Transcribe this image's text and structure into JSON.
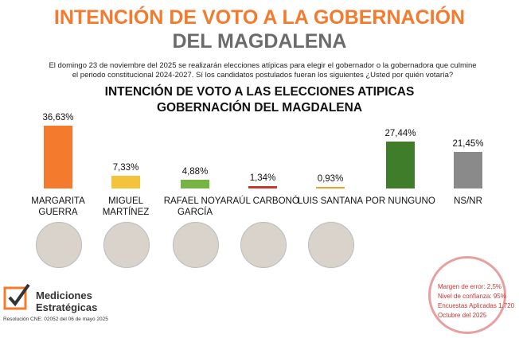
{
  "header": {
    "title": "INTENCIÓN DE VOTO A LA GOBERNACIÓN",
    "subtitle": "DEL MAGDALENA",
    "intro": "El domingo 23 de noviembre del 2025 se realizarán elecciones atípicas para elegir el gobernador o la gobernadora que culmine el periodo constitucional 2024-2027. Sí los candidatos postulados fueran los siguientes ¿Usted por quién votaría?"
  },
  "chart_data": {
    "type": "bar",
    "title": "INTENCIÓN DE VOTO A LAS ELECCIONES ATIPICAS GOBERNACIÓN DEL MAGDALENA",
    "categories": [
      "MARGARITA GUERRA",
      "MIGUEL MARTÍNEZ",
      "RAFAEL NOYA GARCÍA",
      "RAÚL CARBONÓ",
      "LUIS SANTANA",
      "POR NUNGUNO",
      "NS/NR"
    ],
    "values": [
      36.63,
      7.33,
      4.88,
      1.34,
      0.93,
      27.44,
      21.45
    ],
    "value_labels": [
      "36,63%",
      "7,33%",
      "4,88%",
      "1,34%",
      "0,93%",
      "27,44%",
      "21,45%"
    ],
    "colors": [
      "#f47a2e",
      "#f5c33b",
      "#76b444",
      "#c9372c",
      "#f0a032",
      "#3f7d2b",
      "#8a8a8a"
    ]
  },
  "footer": {
    "brand_line1": "Mediciones",
    "brand_line2": "Estratégicas",
    "resolution": "Resolución CNE: 02052 del 06 de mayo 2025"
  },
  "stamp": {
    "margin": "Margen de error: 2,5%",
    "confidence": "Nivel de confianza: 95%",
    "surveys": "Encuestas Aplicadas 1.720",
    "date": "Octubre del 2025"
  }
}
